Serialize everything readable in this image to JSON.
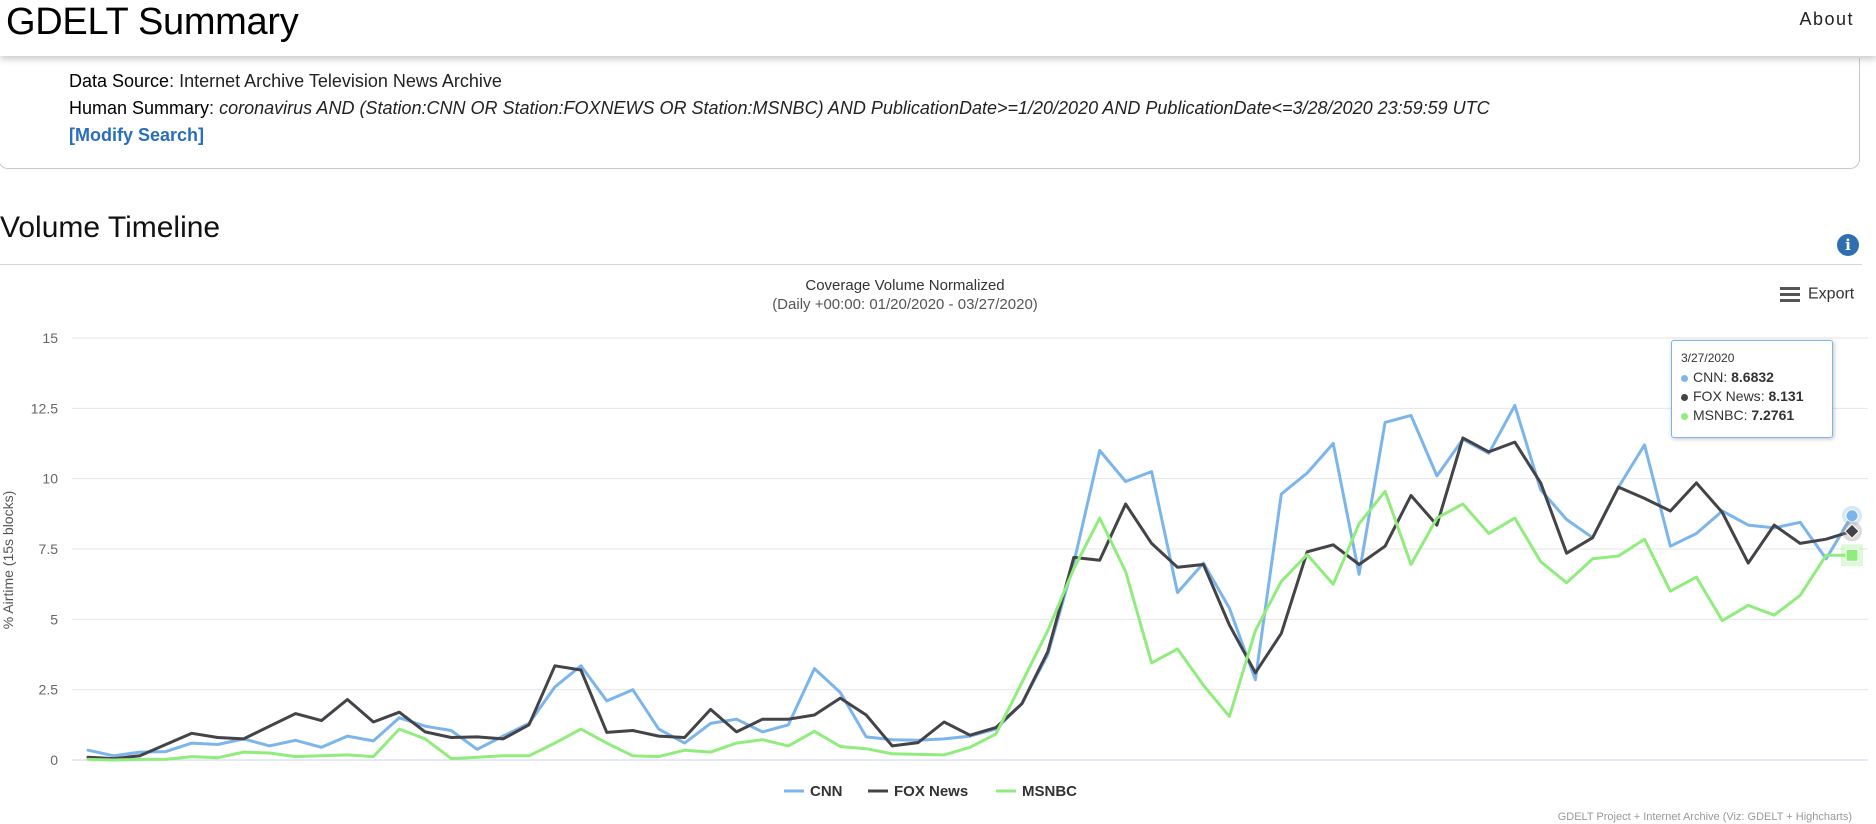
{
  "header": {
    "title": "GDELT Summary",
    "about_label": "About"
  },
  "info": {
    "data_source_label": "Data Source",
    "data_source_value": "Internet Archive Television News Archive",
    "summary_label": "Human Summary",
    "summary_value": "coronavirus AND (Station:CNN OR Station:FOXNEWS OR Station:MSNBC) AND PublicationDate>=1/20/2020 AND PublicationDate<=3/28/2020 23:59:59 UTC",
    "modify_label": "[Modify Search]"
  },
  "section": {
    "title": "Volume Timeline",
    "info_icon": "info-circle-icon"
  },
  "export": {
    "label": "Export",
    "icon": "hamburger-menu-icon"
  },
  "tooltip": {
    "date": "3/27/2020",
    "rows": [
      {
        "name": "CNN",
        "value": "8.6832"
      },
      {
        "name": "FOX News",
        "value": "8.131"
      },
      {
        "name": "MSNBC",
        "value": "7.2761"
      }
    ]
  },
  "credit": "GDELT Project + Internet Archive (Viz: GDELT + Highcharts)",
  "chart_data": {
    "type": "line",
    "title": "Coverage Volume Normalized",
    "subtitle": "(Daily +00:00: 01/20/2020 - 03/27/2020)",
    "ylabel": "% Airtime (15s blocks)",
    "ylim": [
      0,
      15
    ],
    "yticks": [
      "0",
      "2.5",
      "5",
      "7.5",
      "10",
      "12.5",
      "15"
    ],
    "grid": true,
    "legend_position": "bottom-center",
    "x_start": "2020-01-20",
    "x_end": "2020-03-27",
    "series": [
      {
        "name": "CNN",
        "color": "#7cb5ec",
        "values": [
          0.35,
          0.15,
          0.28,
          0.3,
          0.6,
          0.55,
          0.75,
          0.5,
          0.7,
          0.45,
          0.85,
          0.68,
          1.5,
          1.2,
          1.05,
          0.38,
          0.85,
          1.3,
          2.6,
          3.35,
          2.1,
          2.5,
          1.1,
          0.6,
          1.3,
          1.45,
          1.0,
          1.25,
          3.25,
          2.4,
          0.82,
          0.72,
          0.7,
          0.75,
          0.85,
          1.1,
          2.0,
          3.75,
          7.0,
          11.0,
          9.9,
          10.25,
          5.95,
          7.0,
          5.4,
          2.85,
          9.45,
          10.2,
          11.25,
          6.6,
          12.0,
          12.25,
          10.1,
          11.4,
          10.9,
          12.6,
          9.6,
          8.55,
          7.9,
          9.7,
          11.2,
          7.6,
          8.05,
          8.85,
          8.35,
          8.25,
          8.45,
          7.15,
          8.6832
        ]
      },
      {
        "name": "FOX News",
        "color": "#434348",
        "values": [
          0.1,
          0.05,
          0.15,
          0.55,
          0.95,
          0.8,
          0.75,
          1.2,
          1.65,
          1.4,
          2.15,
          1.35,
          1.7,
          1.0,
          0.8,
          0.82,
          0.75,
          1.25,
          3.35,
          3.2,
          0.98,
          1.05,
          0.85,
          0.8,
          1.8,
          1.0,
          1.45,
          1.45,
          1.6,
          2.2,
          1.6,
          0.5,
          0.62,
          1.35,
          0.88,
          1.15,
          2.0,
          3.85,
          7.2,
          7.1,
          9.1,
          7.7,
          6.85,
          6.95,
          4.8,
          3.1,
          4.5,
          7.4,
          7.65,
          6.95,
          7.6,
          9.4,
          8.35,
          11.45,
          10.95,
          11.3,
          9.85,
          7.35,
          7.9,
          9.7,
          9.3,
          8.85,
          9.85,
          8.8,
          7.0,
          8.35,
          7.7,
          7.85,
          8.131
        ]
      },
      {
        "name": "MSNBC",
        "color": "#90ed7d",
        "values": [
          0.02,
          0.0,
          0.02,
          0.02,
          0.12,
          0.08,
          0.28,
          0.25,
          0.12,
          0.15,
          0.18,
          0.12,
          1.1,
          0.75,
          0.05,
          0.1,
          0.15,
          0.15,
          0.6,
          1.1,
          0.6,
          0.15,
          0.12,
          0.35,
          0.28,
          0.6,
          0.72,
          0.5,
          1.02,
          0.48,
          0.4,
          0.22,
          0.2,
          0.18,
          0.45,
          0.92,
          2.75,
          4.6,
          6.8,
          8.6,
          6.7,
          3.45,
          3.95,
          2.65,
          1.55,
          4.6,
          6.35,
          7.3,
          6.25,
          8.4,
          9.55,
          6.95,
          8.6,
          9.1,
          8.05,
          8.6,
          7.05,
          6.3,
          7.15,
          7.25,
          7.85,
          6.0,
          6.5,
          4.95,
          5.5,
          5.15,
          5.85,
          7.2761,
          7.2761
        ]
      }
    ]
  }
}
